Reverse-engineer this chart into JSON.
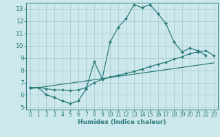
{
  "xlabel": "Humidex (Indice chaleur)",
  "bg_color": "#cce8ec",
  "grid_color": "#aacdd4",
  "line_color": "#2d7b7b",
  "xlim": [
    -0.5,
    23.5
  ],
  "ylim": [
    4.8,
    13.5
  ],
  "yticks": [
    5,
    6,
    7,
    8,
    9,
    10,
    11,
    12,
    13
  ],
  "xticks": [
    0,
    1,
    2,
    3,
    4,
    5,
    6,
    7,
    8,
    9,
    10,
    11,
    12,
    13,
    14,
    15,
    16,
    17,
    18,
    19,
    20,
    21,
    22,
    23
  ],
  "curve1_x": [
    0,
    1,
    2,
    3,
    4,
    5,
    6,
    7,
    8,
    9,
    10,
    11,
    12,
    13,
    14,
    15,
    16,
    17,
    18,
    19,
    20,
    21,
    22
  ],
  "curve1_y": [
    6.6,
    6.6,
    6.0,
    5.8,
    5.5,
    5.3,
    5.5,
    6.5,
    8.7,
    7.3,
    10.3,
    11.5,
    12.2,
    13.35,
    13.1,
    13.35,
    12.6,
    11.8,
    10.3,
    9.5,
    9.8,
    9.6,
    9.2
  ],
  "curve2_x": [
    0,
    1,
    2,
    3,
    4,
    5,
    6,
    7,
    8,
    9,
    10,
    11,
    12,
    13,
    14,
    15,
    16,
    17,
    18,
    19,
    20,
    21,
    22,
    23
  ],
  "curve2_y": [
    6.6,
    6.6,
    6.5,
    6.4,
    6.4,
    6.35,
    6.4,
    6.6,
    7.0,
    7.25,
    7.45,
    7.6,
    7.75,
    7.9,
    8.1,
    8.3,
    8.5,
    8.65,
    8.9,
    9.1,
    9.35,
    9.5,
    9.6,
    9.2
  ],
  "curve3_x": [
    0,
    23
  ],
  "curve3_y": [
    6.5,
    8.6
  ]
}
